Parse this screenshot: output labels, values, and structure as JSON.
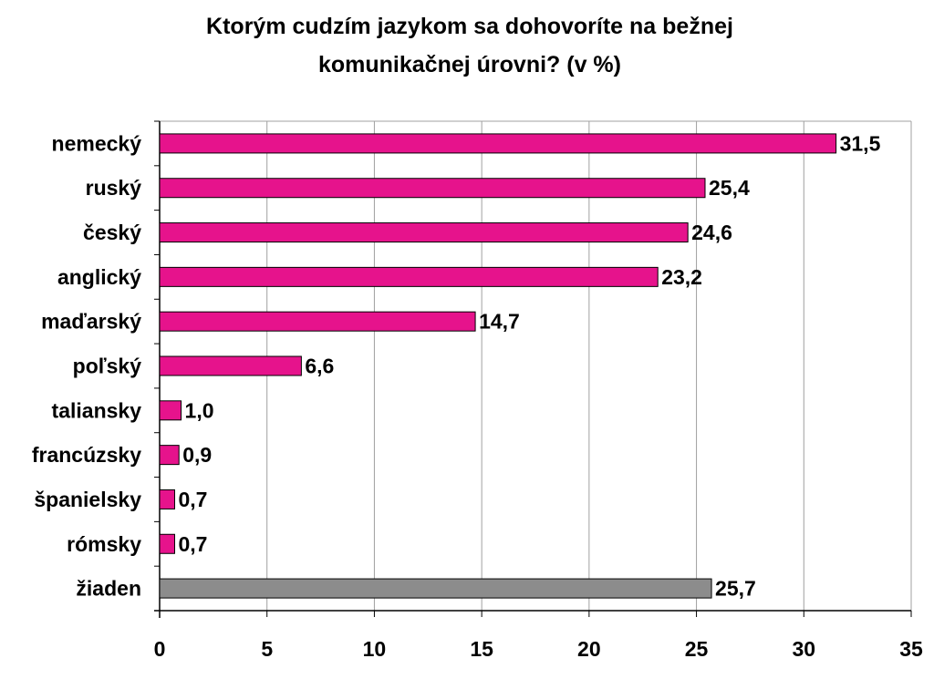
{
  "chart_data": {
    "type": "bar",
    "orientation": "horizontal",
    "title_lines": [
      "Ktorým cudzím jazykom sa dohovoríte na bežnej",
      "komunikačnej úrovni? (v %)"
    ],
    "categories": [
      "nemecký",
      "ruský",
      "český",
      "anglický",
      "maďarský",
      "poľský",
      "taliansky",
      "francúzsky",
      "španielsky",
      "rómsky",
      "žiaden"
    ],
    "values": [
      31.5,
      25.4,
      24.6,
      23.2,
      14.7,
      6.6,
      1.0,
      0.9,
      0.7,
      0.7,
      25.7
    ],
    "value_labels": [
      "31,5",
      "25,4",
      "24,6",
      "23,2",
      "14,7",
      "6,6",
      "1,0",
      "0,9",
      "0,7",
      "0,7",
      "25,7"
    ],
    "bar_colors": [
      "#e6138c",
      "#e6138c",
      "#e6138c",
      "#e6138c",
      "#e6138c",
      "#e6138c",
      "#e6138c",
      "#e6138c",
      "#e6138c",
      "#e6138c",
      "#8c8c8c"
    ],
    "xlim": [
      0,
      35
    ],
    "xticks": [
      0,
      5,
      10,
      15,
      20,
      25,
      30,
      35
    ],
    "xtick_labels": [
      "0",
      "5",
      "10",
      "15",
      "20",
      "25",
      "30",
      "35"
    ],
    "grid": "vertical",
    "legend": "none"
  }
}
